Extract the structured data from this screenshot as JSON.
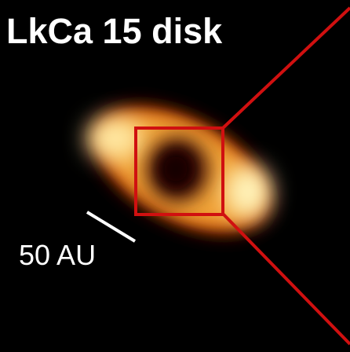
{
  "figure": {
    "title": "LkCa 15 disk",
    "scale_bar_label": "50 AU"
  },
  "colors": {
    "background": "#000000",
    "zoom_box": "#d01010",
    "scale_bar": "#ffffff",
    "disk_core": "#fff4b0",
    "disk_mid": "#f0a030",
    "disk_edge": "#802000"
  }
}
